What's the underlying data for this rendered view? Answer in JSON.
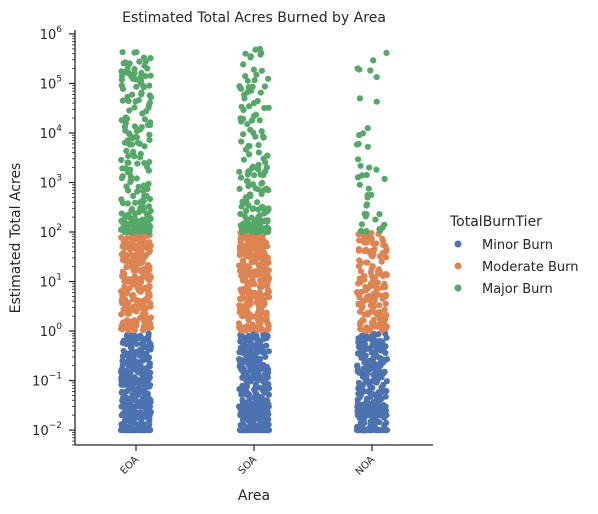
{
  "chart_data": {
    "type": "scatter",
    "title": "Estimated Total Acres Burned by Area",
    "xlabel": "Area",
    "ylabel": "Estimated Total Acres",
    "y_scale": "log",
    "ylim": [
      0.005,
      1200000
    ],
    "y_ticks": [
      {
        "base": "10",
        "exp": "−2",
        "value": 0.01
      },
      {
        "base": "10",
        "exp": "−1",
        "value": 0.1
      },
      {
        "base": "10",
        "exp": "0",
        "value": 1
      },
      {
        "base": "10",
        "exp": "1",
        "value": 10
      },
      {
        "base": "10",
        "exp": "2",
        "value": 100
      },
      {
        "base": "10",
        "exp": "3",
        "value": 1000
      },
      {
        "base": "10",
        "exp": "4",
        "value": 10000
      },
      {
        "base": "10",
        "exp": "5",
        "value": 100000
      },
      {
        "base": "10",
        "exp": "6",
        "value": 1000000
      }
    ],
    "categories": [
      "EOA",
      "SOA",
      "NOA"
    ],
    "legend": {
      "title": "TotalBurnTier",
      "placement": "right",
      "entries": [
        {
          "name": "Minor Burn",
          "color": "#4c72b0"
        },
        {
          "name": "Moderate Burn",
          "color": "#dd8452"
        },
        {
          "name": "Major Burn",
          "color": "#55a868"
        }
      ]
    },
    "series": [
      {
        "name": "Minor Burn",
        "color": "#4c72b0",
        "range": [
          0.01,
          0.9
        ],
        "discrete_values": [
          0.01,
          0.02,
          0.03
        ],
        "points_per_category": [
          280,
          280,
          240
        ]
      },
      {
        "name": "Moderate Burn",
        "color": "#dd8452",
        "range": [
          1,
          99
        ],
        "points_per_category": [
          260,
          260,
          150
        ]
      },
      {
        "name": "Major Burn",
        "color": "#55a868",
        "range": [
          100,
          500000
        ],
        "points_per_category": [
          210,
          150,
          35
        ],
        "extreme_points": {
          "EOA": [
            420000,
            170000,
            120000,
            90000,
            60000,
            45000
          ],
          "SOA": [
            500000,
            480000,
            190000,
            180000,
            150000,
            50000,
            40000
          ],
          "NOA": [
            200000,
            190000,
            50000,
            6000,
            2000,
            900,
            500
          ]
        }
      }
    ]
  }
}
